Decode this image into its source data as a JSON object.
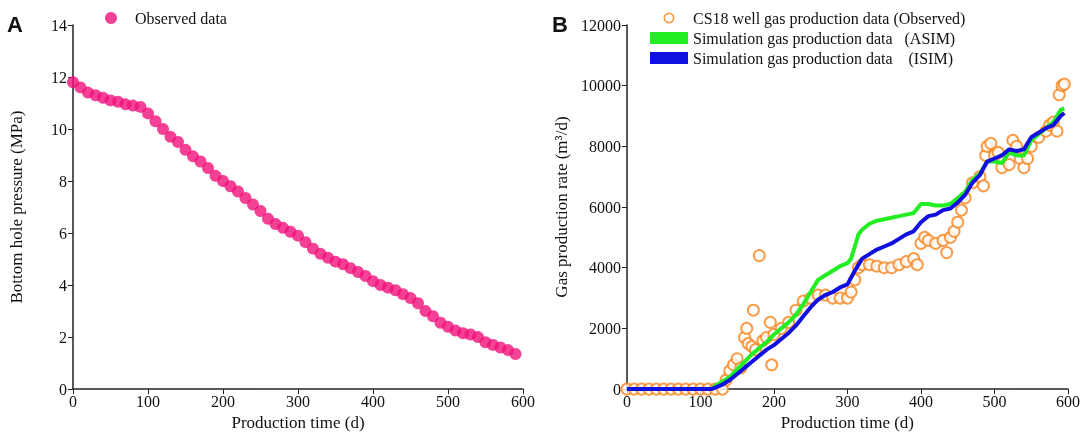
{
  "chart_data": [
    {
      "type": "scatter",
      "title": "A",
      "xlabel": "Production time (d)",
      "ylabel": "Bottom hole pressure (MPa)",
      "xlim": [
        0,
        600
      ],
      "xticks": [
        0,
        100,
        200,
        300,
        400,
        500,
        600
      ],
      "ylim": [
        0,
        14
      ],
      "yticks": [
        0,
        2,
        4,
        6,
        8,
        10,
        12,
        14
      ],
      "grid": false,
      "legend": "top left",
      "marker": "circle",
      "series": [
        {
          "name": "Observed data",
          "color": "#f0117a",
          "x": [
            0,
            10,
            20,
            30,
            40,
            50,
            60,
            70,
            80,
            90,
            100,
            110,
            120,
            130,
            140,
            150,
            160,
            170,
            180,
            190,
            200,
            210,
            220,
            230,
            240,
            250,
            260,
            270,
            280,
            290,
            300,
            310,
            320,
            330,
            340,
            350,
            360,
            370,
            380,
            390,
            400,
            410,
            420,
            430,
            440,
            450,
            460,
            470,
            480,
            490,
            500,
            510,
            520,
            530,
            540,
            550,
            560,
            570,
            580,
            590
          ],
          "values": [
            11.8,
            11.6,
            11.4,
            11.3,
            11.2,
            11.1,
            11.05,
            10.95,
            10.9,
            10.85,
            10.6,
            10.3,
            10.0,
            9.7,
            9.5,
            9.2,
            8.95,
            8.75,
            8.5,
            8.2,
            8.0,
            7.8,
            7.6,
            7.35,
            7.1,
            6.85,
            6.55,
            6.35,
            6.2,
            6.05,
            5.9,
            5.65,
            5.4,
            5.2,
            5.05,
            4.9,
            4.8,
            4.65,
            4.5,
            4.35,
            4.15,
            4.0,
            3.9,
            3.8,
            3.65,
            3.5,
            3.3,
            3.0,
            2.8,
            2.55,
            2.4,
            2.25,
            2.15,
            2.1,
            2.0,
            1.8,
            1.7,
            1.6,
            1.5,
            1.35
          ]
        }
      ]
    },
    {
      "type": "line",
      "title": "B",
      "xlabel": "Production time (d)",
      "ylabel": "Gas production rate (m³/d)",
      "xlim": [
        0,
        600
      ],
      "xticks": [
        0,
        100,
        200,
        300,
        400,
        500,
        600
      ],
      "ylim": [
        0,
        12000
      ],
      "yticks": [
        0,
        2000,
        4000,
        6000,
        8000,
        10000,
        12000
      ],
      "grid": false,
      "legend": "top left",
      "series": [
        {
          "name": "CS18 well gas production data (Observed)",
          "type": "scatter",
          "marker": "circle",
          "color": "#f7851e",
          "x": [
            0,
            10,
            20,
            30,
            40,
            50,
            60,
            70,
            80,
            90,
            100,
            110,
            120,
            130,
            135,
            140,
            145,
            150,
            155,
            160,
            163,
            165,
            170,
            172,
            175,
            180,
            185,
            190,
            195,
            197,
            200,
            210,
            220,
            230,
            240,
            250,
            260,
            270,
            280,
            290,
            300,
            305,
            310,
            315,
            320,
            330,
            340,
            350,
            360,
            370,
            380,
            390,
            395,
            400,
            405,
            410,
            420,
            430,
            435,
            440,
            445,
            450,
            455,
            460,
            470,
            480,
            485,
            488,
            490,
            495,
            500,
            505,
            510,
            520,
            525,
            530,
            535,
            540,
            545,
            550,
            560,
            570,
            575,
            580,
            585,
            588,
            592,
            595
          ],
          "values": [
            0,
            0,
            0,
            0,
            0,
            0,
            0,
            0,
            0,
            0,
            0,
            0,
            0,
            0,
            300,
            600,
            800,
            1000,
            700,
            1700,
            2000,
            1500,
            1400,
            2600,
            1300,
            4400,
            1600,
            1700,
            2200,
            800,
            1800,
            2000,
            2200,
            2600,
            2900,
            3000,
            3100,
            3100,
            3000,
            3000,
            3000,
            3200,
            3600,
            4000,
            4100,
            4100,
            4050,
            4000,
            4000,
            4100,
            4200,
            4300,
            4100,
            4800,
            5000,
            4900,
            4800,
            4900,
            4500,
            5000,
            5200,
            5500,
            5900,
            6300,
            6800,
            7000,
            6700,
            7700,
            8000,
            8100,
            7700,
            7800,
            7300,
            7400,
            8200,
            8000,
            7600,
            7300,
            7600,
            8000,
            8300,
            8500,
            8700,
            8800,
            8500,
            9700,
            10000,
            10050
          ]
        },
        {
          "name": "Simulation gas production data   (ASIM)",
          "color": "#22ee22",
          "x": [
            0,
            115,
            120,
            130,
            140,
            150,
            160,
            170,
            180,
            190,
            200,
            210,
            220,
            230,
            240,
            250,
            260,
            270,
            280,
            290,
            300,
            305,
            310,
            315,
            320,
            330,
            340,
            350,
            360,
            370,
            380,
            390,
            400,
            410,
            420,
            430,
            440,
            450,
            460,
            470,
            480,
            490,
            500,
            510,
            520,
            530,
            540,
            550,
            560,
            570,
            580,
            590,
            595
          ],
          "values": [
            0,
            0,
            100,
            250,
            400,
            650,
            900,
            1150,
            1350,
            1550,
            1800,
            2000,
            2200,
            2450,
            2800,
            3200,
            3600,
            3750,
            3900,
            4050,
            4150,
            4300,
            4700,
            5100,
            5250,
            5450,
            5550,
            5600,
            5650,
            5700,
            5750,
            5800,
            6100,
            6100,
            6050,
            6050,
            6100,
            6300,
            6500,
            6900,
            7100,
            7500,
            7500,
            7450,
            7800,
            7700,
            7700,
            8200,
            8400,
            8600,
            8800,
            9200,
            9250
          ]
        },
        {
          "name": "Simulation gas production data    (ISIM)",
          "color": "#1010e0",
          "x": [
            0,
            115,
            120,
            130,
            140,
            150,
            160,
            170,
            180,
            190,
            200,
            210,
            220,
            230,
            240,
            250,
            260,
            270,
            280,
            290,
            300,
            310,
            320,
            330,
            340,
            350,
            360,
            370,
            380,
            390,
            400,
            410,
            420,
            430,
            440,
            450,
            460,
            470,
            480,
            490,
            500,
            510,
            520,
            530,
            540,
            550,
            560,
            570,
            580,
            590,
            595
          ],
          "values": [
            0,
            0,
            50,
            150,
            300,
            500,
            700,
            900,
            1100,
            1300,
            1450,
            1650,
            1850,
            2100,
            2400,
            2700,
            2950,
            3100,
            3200,
            3350,
            3450,
            3900,
            4300,
            4450,
            4600,
            4700,
            4800,
            4950,
            5100,
            5200,
            5500,
            5700,
            5750,
            5900,
            5950,
            6150,
            6400,
            6800,
            7050,
            7500,
            7600,
            7700,
            7900,
            7850,
            7900,
            8300,
            8450,
            8600,
            8700,
            9000,
            9100
          ]
        }
      ]
    }
  ]
}
